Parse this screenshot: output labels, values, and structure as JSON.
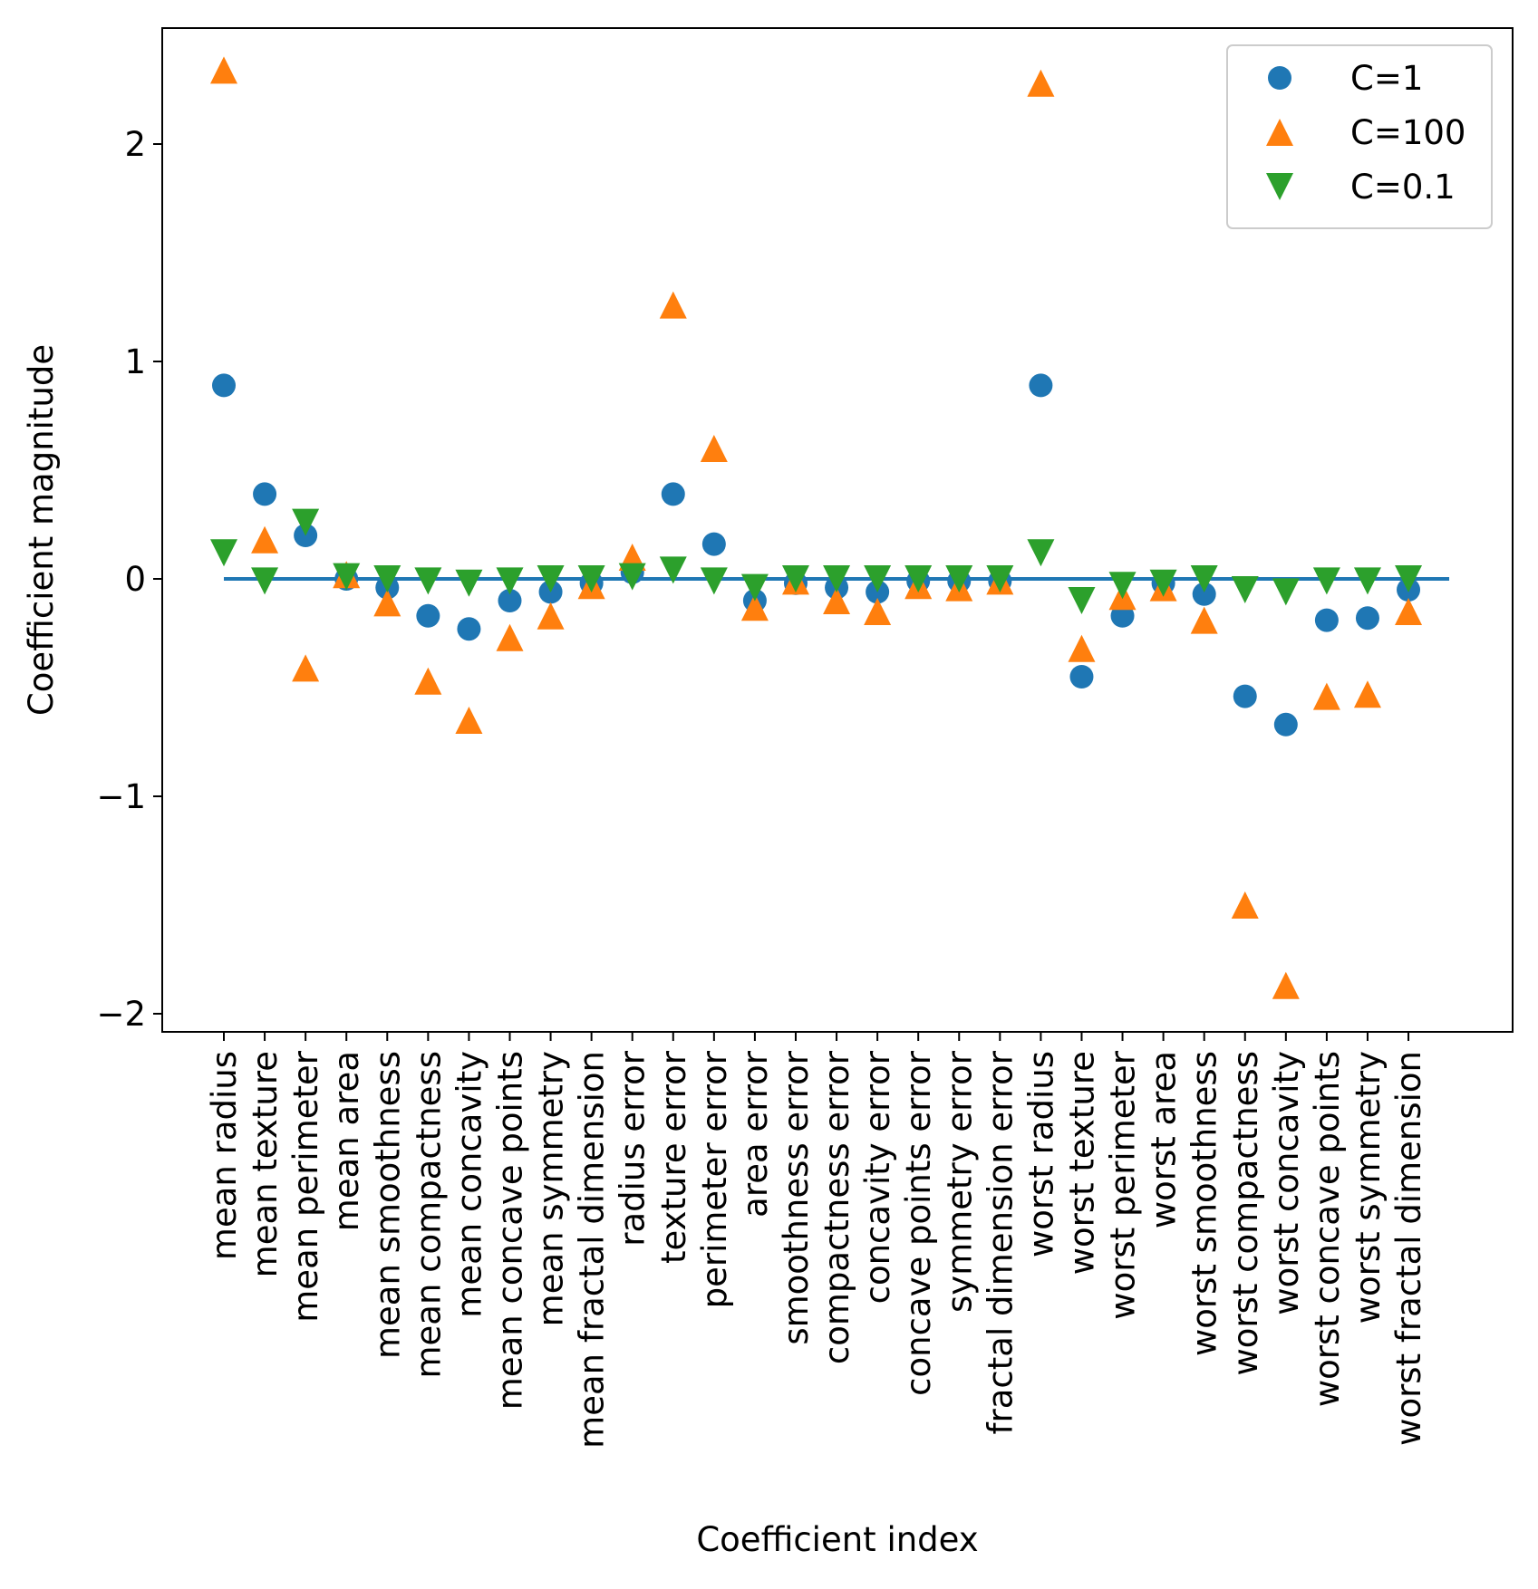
{
  "chart_data": {
    "type": "scatter",
    "xlabel": "Coefficient index",
    "ylabel": "Coefficient magnitude",
    "ylim": [
      -2.05,
      2.55
    ],
    "yticks": [
      -2,
      -1,
      0,
      1,
      2
    ],
    "ytick_labels": [
      "−2",
      "−1",
      "0",
      "1",
      "2"
    ],
    "grid": false,
    "legend_position": "top-right",
    "categories": [
      "mean radius",
      "mean texture",
      "mean perimeter",
      "mean area",
      "mean smoothness",
      "mean compactness",
      "mean concavity",
      "mean concave points",
      "mean symmetry",
      "mean fractal dimension",
      "radius error",
      "texture error",
      "perimeter error",
      "area error",
      "smoothness error",
      "compactness error",
      "concavity error",
      "concave points error",
      "symmetry error",
      "fractal dimension error",
      "worst radius",
      "worst texture",
      "worst perimeter",
      "worst area",
      "worst smoothness",
      "worst compactness",
      "worst concavity",
      "worst concave points",
      "worst symmetry",
      "worst fractal dimension"
    ],
    "series": [
      {
        "name": "C=1",
        "marker": "circle",
        "color": "#1f77b4",
        "values": [
          0.89,
          0.39,
          0.2,
          0.0,
          -0.04,
          -0.17,
          -0.23,
          -0.1,
          -0.06,
          -0.02,
          0.03,
          0.39,
          0.16,
          -0.1,
          -0.02,
          -0.04,
          -0.06,
          -0.01,
          -0.01,
          -0.01,
          0.89,
          -0.45,
          -0.17,
          -0.02,
          -0.07,
          -0.54,
          -0.67,
          -0.19,
          -0.18,
          -0.05
        ]
      },
      {
        "name": "C=100",
        "marker": "triangle-up",
        "color": "#ff7f0e",
        "values": [
          2.34,
          0.18,
          -0.41,
          0.02,
          -0.11,
          -0.47,
          -0.65,
          -0.27,
          -0.17,
          -0.03,
          0.1,
          1.26,
          0.6,
          -0.13,
          -0.01,
          -0.1,
          -0.15,
          -0.03,
          -0.04,
          -0.01,
          2.28,
          -0.32,
          -0.08,
          -0.04,
          -0.19,
          -1.5,
          -1.87,
          -0.54,
          -0.53,
          -0.15
        ]
      },
      {
        "name": "C=0.1",
        "marker": "triangle-down",
        "color": "#2ca02c",
        "values": [
          0.12,
          -0.01,
          0.26,
          0.01,
          0.0,
          -0.01,
          -0.02,
          -0.01,
          0.0,
          0.0,
          0.01,
          0.04,
          -0.01,
          -0.04,
          0.0,
          0.0,
          0.0,
          0.0,
          0.0,
          0.0,
          0.12,
          -0.1,
          -0.03,
          -0.02,
          0.0,
          -0.05,
          -0.06,
          -0.01,
          -0.01,
          0.0
        ]
      }
    ],
    "reference_line": {
      "y": 0,
      "color": "#1f77b4"
    }
  }
}
